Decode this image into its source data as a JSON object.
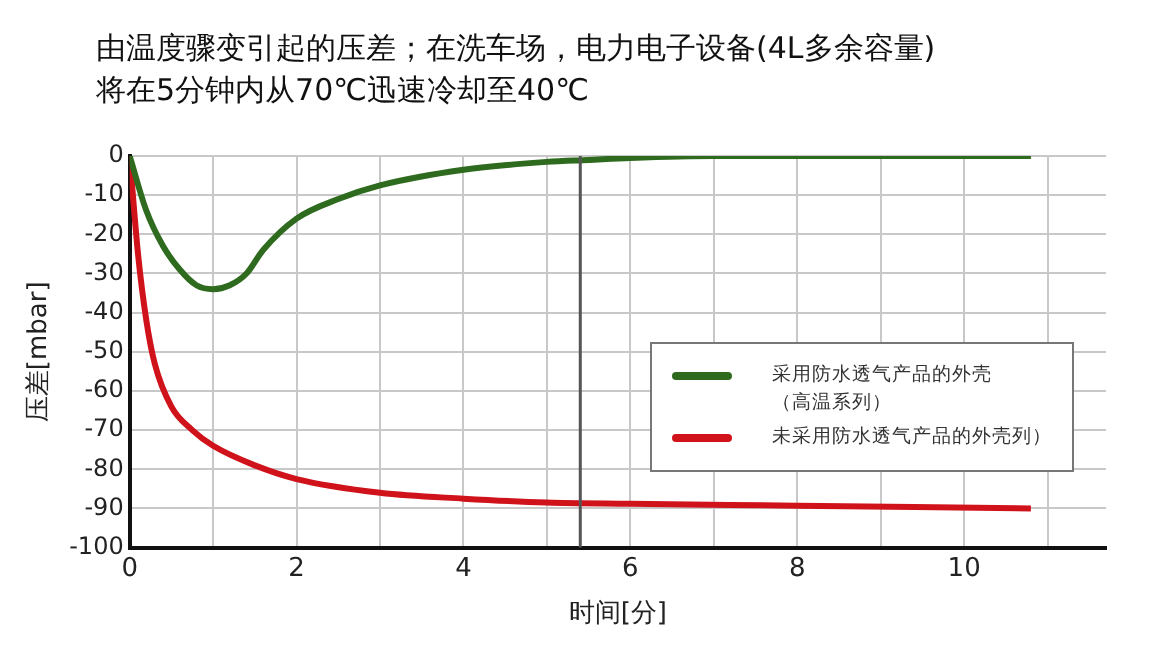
{
  "chart_data": {
    "type": "line",
    "title": "由温度骤变引起的压差；在洗车场，电力电子设备(4L多余容量)\n将在5分钟内从70℃迅速冷却至40℃",
    "xlabel": "时间[分]",
    "ylabel": "压差[mbar]",
    "xlim": [
      0,
      11.7
    ],
    "xticks": [
      0,
      {
        "value": 1,
        "label": null
      },
      2,
      {
        "value": 3,
        "label": null
      },
      4,
      {
        "value": 5,
        "label": null
      },
      6,
      {
        "value": 7,
        "label": null
      },
      8,
      {
        "value": 9,
        "label": null
      },
      10,
      {
        "value": 11,
        "label": null
      }
    ],
    "ylim": [
      -100,
      0
    ],
    "yticks": [
      -100,
      -90,
      -80,
      -70,
      -60,
      -50,
      -40,
      -30,
      -20,
      -10,
      0
    ],
    "grid": true,
    "legend": "right",
    "marker": "none",
    "line_style": "solid",
    "ref_lines": [
      {
        "axis": "x",
        "value": 5.4,
        "label": null,
        "color": "#555555"
      }
    ],
    "series": [
      {
        "name": "采用防水透气产品的外壳（高温系列）",
        "color": "#2e6b1f",
        "x": [
          0,
          0.2,
          0.4,
          0.6,
          0.8,
          1,
          1.2,
          1.4,
          1.6,
          2,
          2.5,
          3,
          4,
          5,
          5.5,
          6,
          7,
          8,
          10.8
        ],
        "values": [
          0,
          -14,
          -23,
          -29,
          -33,
          -34,
          -33,
          -30,
          -24,
          -16,
          -11,
          -7.5,
          -3.5,
          -1.5,
          -1,
          -0.5,
          0,
          0,
          0
        ]
      },
      {
        "name": "未采用防水透气产品的外壳列）",
        "color": "#d0121b",
        "x": [
          0,
          0.1,
          0.2,
          0.3,
          0.5,
          0.75,
          1,
          1.5,
          2,
          3,
          4,
          5,
          6,
          8,
          10.8
        ],
        "values": [
          0,
          -25,
          -42,
          -53,
          -64,
          -70,
          -74,
          -79,
          -82.5,
          -86,
          -87.5,
          -88.5,
          -88.8,
          -89.3,
          -90
        ]
      }
    ]
  }
}
